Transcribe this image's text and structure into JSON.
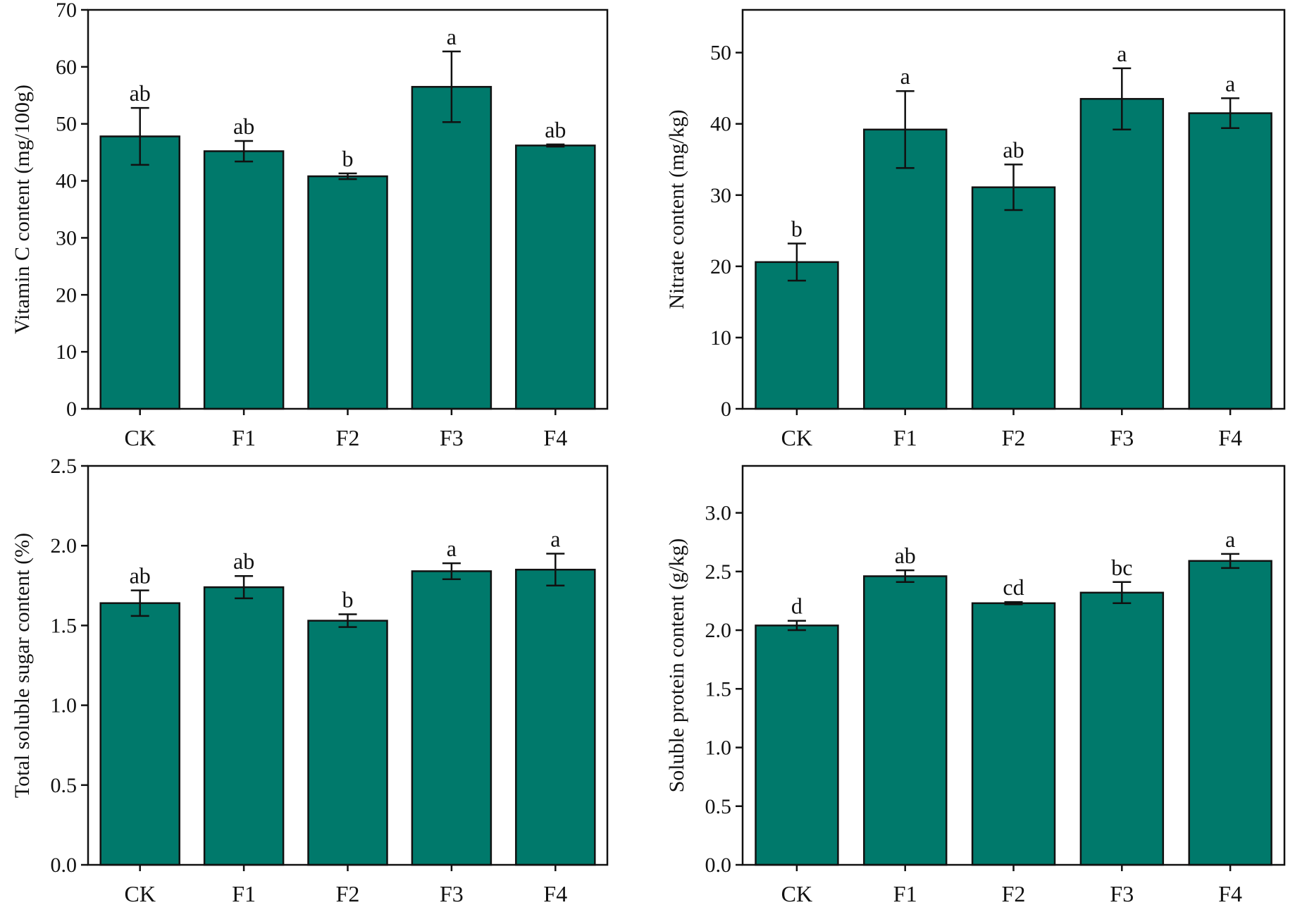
{
  "chart_data": [
    {
      "type": "bar",
      "title": "",
      "xlabel": "",
      "ylabel": "Vitamin C content (mg/100g)",
      "ylim": [
        0,
        70
      ],
      "yticks": [
        0,
        10,
        20,
        30,
        40,
        50,
        60,
        70
      ],
      "ytick_labels": [
        "0",
        "10",
        "20",
        "30",
        "40",
        "50",
        "60",
        "70"
      ],
      "categories": [
        "CK",
        "F1",
        "F2",
        "F3",
        "F4"
      ],
      "values": [
        47.8,
        45.2,
        40.8,
        56.5,
        46.2
      ],
      "errors": [
        5.0,
        1.8,
        0.5,
        6.2,
        0.2
      ],
      "significance": [
        "ab",
        "ab",
        "b",
        "a",
        "ab"
      ],
      "bar_color": "#00796b"
    },
    {
      "type": "bar",
      "title": "",
      "xlabel": "",
      "ylabel": "Nitrate content (mg/kg)",
      "ylim": [
        0,
        56
      ],
      "yticks": [
        0,
        10,
        20,
        30,
        40,
        50
      ],
      "ytick_labels": [
        "0",
        "10",
        "20",
        "30",
        "40",
        "50"
      ],
      "categories": [
        "CK",
        "F1",
        "F2",
        "F3",
        "F4"
      ],
      "values": [
        20.6,
        39.2,
        31.1,
        43.5,
        41.5
      ],
      "errors": [
        2.6,
        5.4,
        3.2,
        4.3,
        2.1
      ],
      "significance": [
        "b",
        "a",
        "ab",
        "a",
        "a"
      ],
      "bar_color": "#00796b"
    },
    {
      "type": "bar",
      "title": "",
      "xlabel": "",
      "ylabel": "Total soluble sugar content (%)",
      "ylim": [
        0,
        2.5
      ],
      "yticks": [
        0,
        0.5,
        1.0,
        1.5,
        2.0,
        2.5
      ],
      "ytick_labels": [
        "0.0",
        "0.5",
        "1.0",
        "1.5",
        "2.0",
        "2.5"
      ],
      "categories": [
        "CK",
        "F1",
        "F2",
        "F3",
        "F4"
      ],
      "values": [
        1.64,
        1.74,
        1.53,
        1.84,
        1.85
      ],
      "errors": [
        0.08,
        0.07,
        0.04,
        0.05,
        0.1
      ],
      "significance": [
        "ab",
        "ab",
        "b",
        "a",
        "a"
      ],
      "bar_color": "#00796b"
    },
    {
      "type": "bar",
      "title": "",
      "xlabel": "",
      "ylabel": "Soluble protein content (g/kg)",
      "ylim": [
        0,
        3.4
      ],
      "yticks": [
        0,
        0.5,
        1.0,
        1.5,
        2.0,
        2.5,
        3.0
      ],
      "ytick_labels": [
        "0.0",
        "0.5",
        "1.0",
        "1.5",
        "2.0",
        "2.5",
        "3.0"
      ],
      "categories": [
        "CK",
        "F1",
        "F2",
        "F3",
        "F4"
      ],
      "values": [
        2.04,
        2.46,
        2.23,
        2.32,
        2.59
      ],
      "errors": [
        0.04,
        0.05,
        0.01,
        0.09,
        0.06
      ],
      "significance": [
        "d",
        "ab",
        "cd",
        "bc",
        "a"
      ],
      "bar_color": "#00796b"
    }
  ]
}
